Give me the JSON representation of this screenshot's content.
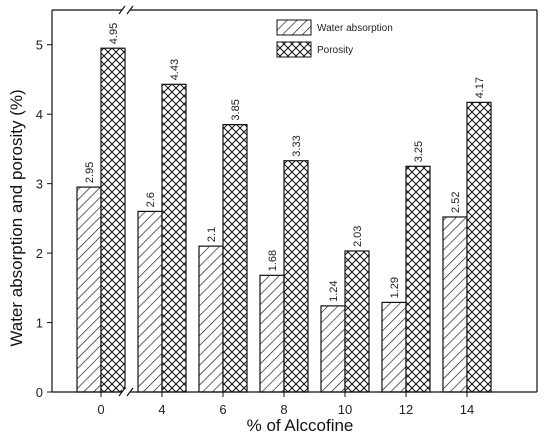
{
  "chart_data": {
    "type": "bar",
    "title": "",
    "xlabel": "% of Alccofine",
    "ylabel": "Water absorption and porosity (%)",
    "categories": [
      "0",
      "4",
      "6",
      "8",
      "10",
      "12",
      "14"
    ],
    "ylim": [
      0,
      5.5
    ],
    "yticks": [
      0,
      1,
      2,
      3,
      4,
      5
    ],
    "grid": false,
    "legend_position": "top-center",
    "axis_break": "x-axis between 0 and 4",
    "series": [
      {
        "name": "Water absorption",
        "pattern": "diagonal-hatch",
        "values": [
          2.95,
          2.6,
          2.1,
          1.68,
          1.24,
          1.29,
          2.52
        ],
        "labels": [
          "2.95",
          "2.6",
          "2.1",
          "1.68",
          "1.24",
          "1.29",
          "2.52"
        ]
      },
      {
        "name": "Porosity",
        "pattern": "crosshatch",
        "values": [
          4.95,
          4.43,
          3.85,
          3.33,
          2.03,
          3.25,
          4.17
        ],
        "labels": [
          "4.95",
          "4.43",
          "3.85",
          "3.33",
          "2.03",
          "3.25",
          "4.17"
        ]
      }
    ]
  }
}
